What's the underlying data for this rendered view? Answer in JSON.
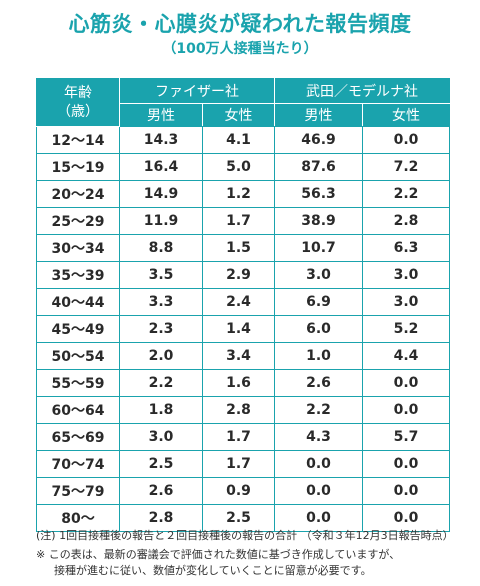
{
  "title": "心筋炎・心膜炎が疑われた報告頻度",
  "subtitle": "（100万人接種当たり）",
  "table": {
    "age_header": "年齢",
    "age_unit": "（歳）",
    "groups": [
      "ファイザー社",
      "武田／モデルナ社"
    ],
    "subheaders": [
      "男性",
      "女性",
      "男性",
      "女性"
    ]
  },
  "chart_data": {
    "type": "table",
    "title": "心筋炎・心膜炎が疑われた報告頻度",
    "subtitle": "（100万人接種当たり）",
    "columns": [
      "年齢（歳）",
      "ファイザー社 男性",
      "ファイザー社 女性",
      "武田／モデルナ社 男性",
      "武田／モデルナ社 女性"
    ],
    "rows": [
      [
        "12〜14",
        "14.3",
        "4.1",
        "46.9",
        "0.0"
      ],
      [
        "15〜19",
        "16.4",
        "5.0",
        "87.6",
        "7.2"
      ],
      [
        "20〜24",
        "14.9",
        "1.2",
        "56.3",
        "2.2"
      ],
      [
        "25〜29",
        "11.9",
        "1.7",
        "38.9",
        "2.8"
      ],
      [
        "30〜34",
        "8.8",
        "1.5",
        "10.7",
        "6.3"
      ],
      [
        "35〜39",
        "3.5",
        "2.9",
        "3.0",
        "3.0"
      ],
      [
        "40〜44",
        "3.3",
        "2.4",
        "6.9",
        "3.0"
      ],
      [
        "45〜49",
        "2.3",
        "1.4",
        "6.0",
        "5.2"
      ],
      [
        "50〜54",
        "2.0",
        "3.4",
        "1.0",
        "4.4"
      ],
      [
        "55〜59",
        "2.2",
        "1.6",
        "2.6",
        "0.0"
      ],
      [
        "60〜64",
        "1.8",
        "2.8",
        "2.2",
        "0.0"
      ],
      [
        "65〜69",
        "3.0",
        "1.7",
        "4.3",
        "5.7"
      ],
      [
        "70〜74",
        "2.5",
        "1.7",
        "0.0",
        "0.0"
      ],
      [
        "75〜79",
        "2.6",
        "0.9",
        "0.0",
        "0.0"
      ],
      [
        "80〜",
        "2.8",
        "2.5",
        "0.0",
        "0.0"
      ]
    ]
  },
  "notes": {
    "note1": "(注) 1回目接種後の報告と２回目接種後の報告の合計 （令和３年12月3日報告時点）",
    "note2_line1": "※ この表は、最新の審議会で評価された数値に基づき作成していますが、",
    "note2_line2": "接種が進むに従い、数値が変化していくことに留意が必要です。"
  },
  "colors": {
    "accent": "#1aa3ad"
  }
}
